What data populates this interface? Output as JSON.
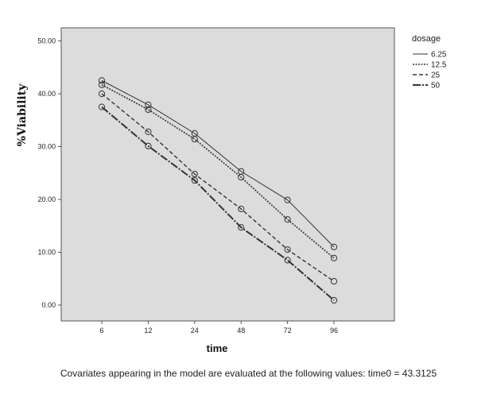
{
  "chart_data": {
    "type": "line",
    "xlabel": "time",
    "ylabel": "%Viability",
    "categories": [
      "6",
      "12",
      "24",
      "48",
      "72",
      "96"
    ],
    "y_ticks": [
      "0.00",
      "10.00",
      "20.00",
      "30.00",
      "40.00",
      "50.00"
    ],
    "ylim": [
      -3,
      50
    ],
    "grid": false,
    "legend": {
      "title": "dosage",
      "placement": "top-right, outside plot"
    },
    "series": [
      {
        "name": "6.25",
        "style": "solid-thin",
        "values": [
          42.5,
          37.9,
          32.5,
          25.3,
          19.9,
          11.0
        ]
      },
      {
        "name": "12.5",
        "style": "dotted",
        "values": [
          41.7,
          37.0,
          31.4,
          24.2,
          16.2,
          8.9
        ]
      },
      {
        "name": "25",
        "style": "dashed",
        "values": [
          40.0,
          32.8,
          24.8,
          18.2,
          10.5,
          4.5
        ]
      },
      {
        "name": "50",
        "style": "dash-dot-bold",
        "values": [
          37.5,
          30.1,
          23.6,
          14.7,
          8.5,
          0.9
        ]
      }
    ],
    "colors": {
      "plot_background": "#dcdcdc",
      "line": "#333333"
    }
  },
  "footnote": "Covariates appearing in the model are evaluated at the following values: time0 = 43.3125"
}
